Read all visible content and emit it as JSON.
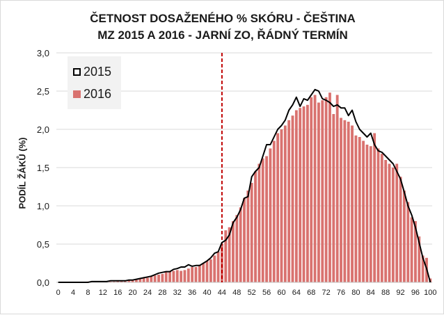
{
  "chart_data": {
    "type": "bar",
    "title": [
      "ČETNOST DOSAŽENÉHO % SKÓRU - ČEŠTINA",
      "MZ 2015 A 2016 - JARNÍ ZO, ŘÁDNÝ TERMÍN"
    ],
    "xlabel": "",
    "ylabel": "PODÍL ŽÁKŮ (%)",
    "xlim": [
      0,
      100
    ],
    "ylim": [
      0,
      3.0
    ],
    "ytick_labels": [
      "0,0",
      "0,5",
      "1,0",
      "1,5",
      "2,0",
      "2,5",
      "3,0"
    ],
    "xtick_labels": [
      "0",
      "4",
      "8",
      "12",
      "16",
      "20",
      "24",
      "28",
      "32",
      "36",
      "40",
      "44",
      "48",
      "52",
      "56",
      "60",
      "64",
      "68",
      "72",
      "76",
      "80",
      "84",
      "88",
      "92",
      "96",
      "100"
    ],
    "grid": true,
    "legend_position": "top-left",
    "threshold_line_x": 44,
    "colors": {
      "bar_2016": "#d9726f",
      "line_2015": "#000000",
      "threshold": "#c00000",
      "grid": "#d9d9d9",
      "legend_bg": "#f2f2f2"
    },
    "series": [
      {
        "name": "2016",
        "kind": "bar",
        "x": [
          0,
          1,
          2,
          3,
          4,
          5,
          6,
          7,
          8,
          9,
          10,
          11,
          12,
          13,
          14,
          15,
          16,
          17,
          18,
          19,
          20,
          21,
          22,
          23,
          24,
          25,
          26,
          27,
          28,
          29,
          30,
          31,
          32,
          33,
          34,
          35,
          36,
          37,
          38,
          39,
          40,
          41,
          42,
          43,
          44,
          45,
          46,
          47,
          48,
          49,
          50,
          51,
          52,
          53,
          54,
          55,
          56,
          57,
          58,
          59,
          60,
          61,
          62,
          63,
          64,
          65,
          66,
          67,
          68,
          69,
          70,
          71,
          72,
          73,
          74,
          75,
          76,
          77,
          78,
          79,
          80,
          81,
          82,
          83,
          84,
          85,
          86,
          87,
          88,
          89,
          90,
          91,
          92,
          93,
          94,
          95,
          96,
          97,
          98,
          99,
          100
        ],
        "values": [
          0,
          0,
          0,
          0,
          0,
          0,
          0,
          0,
          0.01,
          0,
          0.01,
          0.01,
          0.01,
          0.01,
          0.01,
          0.01,
          0.02,
          0.02,
          0.02,
          0.03,
          0.03,
          0.04,
          0.05,
          0.06,
          0.06,
          0.08,
          0.09,
          0.1,
          0.11,
          0.14,
          0.14,
          0.15,
          0.16,
          0.15,
          0.16,
          0.18,
          0.2,
          0.2,
          0.22,
          0.25,
          0.28,
          0.3,
          0.35,
          0.4,
          0.5,
          0.68,
          0.72,
          0.8,
          0.88,
          0.98,
          1.1,
          1.2,
          1.3,
          1.45,
          1.55,
          1.62,
          1.65,
          1.75,
          1.85,
          1.95,
          2.0,
          2.05,
          2.12,
          2.18,
          2.25,
          2.28,
          2.3,
          2.32,
          2.42,
          2.45,
          2.35,
          2.38,
          2.42,
          2.48,
          2.2,
          2.45,
          2.15,
          2.12,
          2.1,
          2.05,
          1.92,
          1.9,
          1.85,
          1.8,
          1.78,
          1.95,
          1.75,
          1.68,
          1.6,
          1.55,
          1.5,
          1.55,
          1.38,
          1.2,
          1.05,
          0.85,
          0.8,
          0.6,
          0.35,
          0.32,
          0.05
        ]
      },
      {
        "name": "2015",
        "kind": "line",
        "x": [
          0,
          1,
          2,
          3,
          4,
          5,
          6,
          7,
          8,
          9,
          10,
          11,
          12,
          13,
          14,
          15,
          16,
          17,
          18,
          19,
          20,
          21,
          22,
          23,
          24,
          25,
          26,
          27,
          28,
          29,
          30,
          31,
          32,
          33,
          34,
          35,
          36,
          37,
          38,
          39,
          40,
          41,
          42,
          43,
          44,
          45,
          46,
          47,
          48,
          49,
          50,
          51,
          52,
          53,
          54,
          55,
          56,
          57,
          58,
          59,
          60,
          61,
          62,
          63,
          64,
          65,
          66,
          67,
          68,
          69,
          70,
          71,
          72,
          73,
          74,
          75,
          76,
          77,
          78,
          79,
          80,
          81,
          82,
          83,
          84,
          85,
          86,
          87,
          88,
          89,
          90,
          91,
          92,
          93,
          94,
          95,
          96,
          97,
          98,
          99,
          100
        ],
        "values": [
          0,
          0,
          0,
          0,
          0,
          0,
          0,
          0,
          0,
          0.01,
          0.01,
          0.01,
          0.01,
          0.01,
          0.02,
          0.02,
          0.02,
          0.02,
          0.02,
          0.03,
          0.03,
          0.04,
          0.05,
          0.06,
          0.07,
          0.08,
          0.1,
          0.12,
          0.13,
          0.14,
          0.14,
          0.17,
          0.18,
          0.2,
          0.2,
          0.23,
          0.21,
          0.22,
          0.22,
          0.25,
          0.28,
          0.32,
          0.38,
          0.4,
          0.52,
          0.55,
          0.62,
          0.78,
          0.85,
          0.95,
          1.1,
          1.12,
          1.38,
          1.45,
          1.5,
          1.65,
          1.8,
          1.8,
          1.9,
          2.0,
          2.05,
          2.12,
          2.25,
          2.32,
          2.42,
          2.3,
          2.4,
          2.38,
          2.45,
          2.52,
          2.5,
          2.4,
          2.38,
          2.35,
          2.3,
          2.32,
          2.28,
          2.28,
          2.18,
          2.25,
          2.1,
          2.0,
          1.95,
          1.9,
          1.95,
          1.8,
          1.72,
          1.7,
          1.65,
          1.6,
          1.55,
          1.45,
          1.35,
          1.18,
          1.0,
          0.88,
          0.72,
          0.52,
          0.32,
          0.18,
          0.0
        ]
      }
    ]
  }
}
